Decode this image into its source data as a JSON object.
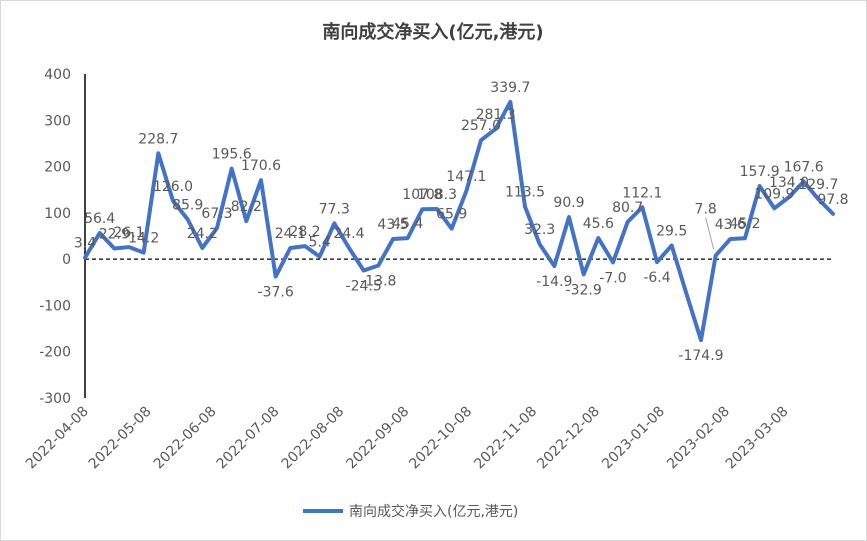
{
  "chart_data": {
    "type": "line",
    "title": "南向成交净买入(亿元,港元)",
    "xlabel": "",
    "ylabel": "",
    "ylim": [
      -300,
      400
    ],
    "yticks": [
      -300,
      -200,
      -100,
      0,
      100,
      200,
      300,
      400
    ],
    "xticks": [
      "2022-04-08",
      "2022-05-08",
      "2022-06-08",
      "2022-07-08",
      "2022-08-08",
      "2022-09-08",
      "2022-10-08",
      "2022-11-08",
      "2022-12-08",
      "2023-01-08",
      "2023-02-08",
      "2023-03-08"
    ],
    "legend_position": "bottom",
    "grid": false,
    "series": [
      {
        "name": "南向成交净买入(亿元,港元)",
        "color": "#4472c4",
        "x": [
          "2022-04-08",
          "2022-04-15",
          "2022-04-22",
          "2022-04-29",
          "2022-05-06",
          "2022-05-13",
          "2022-05-20",
          "2022-05-27",
          "2022-06-03",
          "2022-06-10",
          "2022-06-17",
          "2022-06-24",
          "2022-07-01",
          "2022-07-08",
          "2022-07-15",
          "2022-07-22",
          "2022-07-29",
          "2022-08-05",
          "2022-08-12",
          "2022-08-19",
          "2022-08-26",
          "2022-09-02",
          "2022-09-09",
          "2022-09-16",
          "2022-09-23",
          "2022-09-30",
          "2022-10-07",
          "2022-10-14",
          "2022-10-21",
          "2022-10-28",
          "2022-11-04",
          "2022-11-11",
          "2022-11-18",
          "2022-11-25",
          "2022-12-02",
          "2022-12-09",
          "2022-12-16",
          "2022-12-23",
          "2022-12-30",
          "2023-01-06",
          "2023-01-13",
          "2023-01-20",
          "2023-01-27",
          "2023-02-03",
          "2023-02-10",
          "2023-02-17",
          "2023-02-24",
          "2023-03-03",
          "2023-03-10",
          "2023-03-17",
          "2023-03-24",
          "2023-03-31"
        ],
        "values": [
          3.4,
          56.4,
          22.9,
          26.1,
          14.2,
          228.7,
          126.0,
          85.9,
          24.2,
          67.3,
          195.6,
          82.2,
          170.6,
          -37.6,
          24.1,
          28.2,
          5.4,
          77.3,
          24.4,
          -24.5,
          -13.8,
          43.5,
          45.4,
          107.8,
          108.3,
          65.9,
          147.1,
          257.0,
          281.3,
          339.7,
          113.5,
          32.3,
          -14.9,
          90.9,
          -32.9,
          45.6,
          -7.0,
          80.7,
          112.1,
          -6.4,
          29.5,
          -74.0,
          -174.9,
          7.8,
          43.6,
          45.2,
          157.9,
          109.9,
          134.0,
          167.6,
          129.7,
          97.8
        ],
        "labels": [
          "3.4",
          "56.4",
          "22.9",
          "26.1",
          "14.2",
          "228.7",
          "126.0",
          "85.9",
          "24.2",
          "67.3",
          "195.6",
          "82.2",
          "170.6",
          "-37.6",
          "24.1",
          "28.2",
          "5.4",
          "77.3",
          "24.4",
          "-24.5",
          "-13.8",
          "43.5",
          "45.4",
          "107.8",
          "108.3",
          "65.9",
          "147.1",
          "257.0",
          "281.3",
          "339.7",
          "113.5",
          "32.3",
          "-14.9",
          "90.9",
          "-32.9",
          "45.6",
          "-7.0",
          "80.7",
          "112.1",
          "-6.4",
          "29.5",
          "",
          "-174.9",
          "7.8",
          "43.6",
          "45.2",
          "157.9",
          "109.9",
          "134.0",
          "167.6",
          "129.7",
          "97.8"
        ]
      }
    ]
  }
}
